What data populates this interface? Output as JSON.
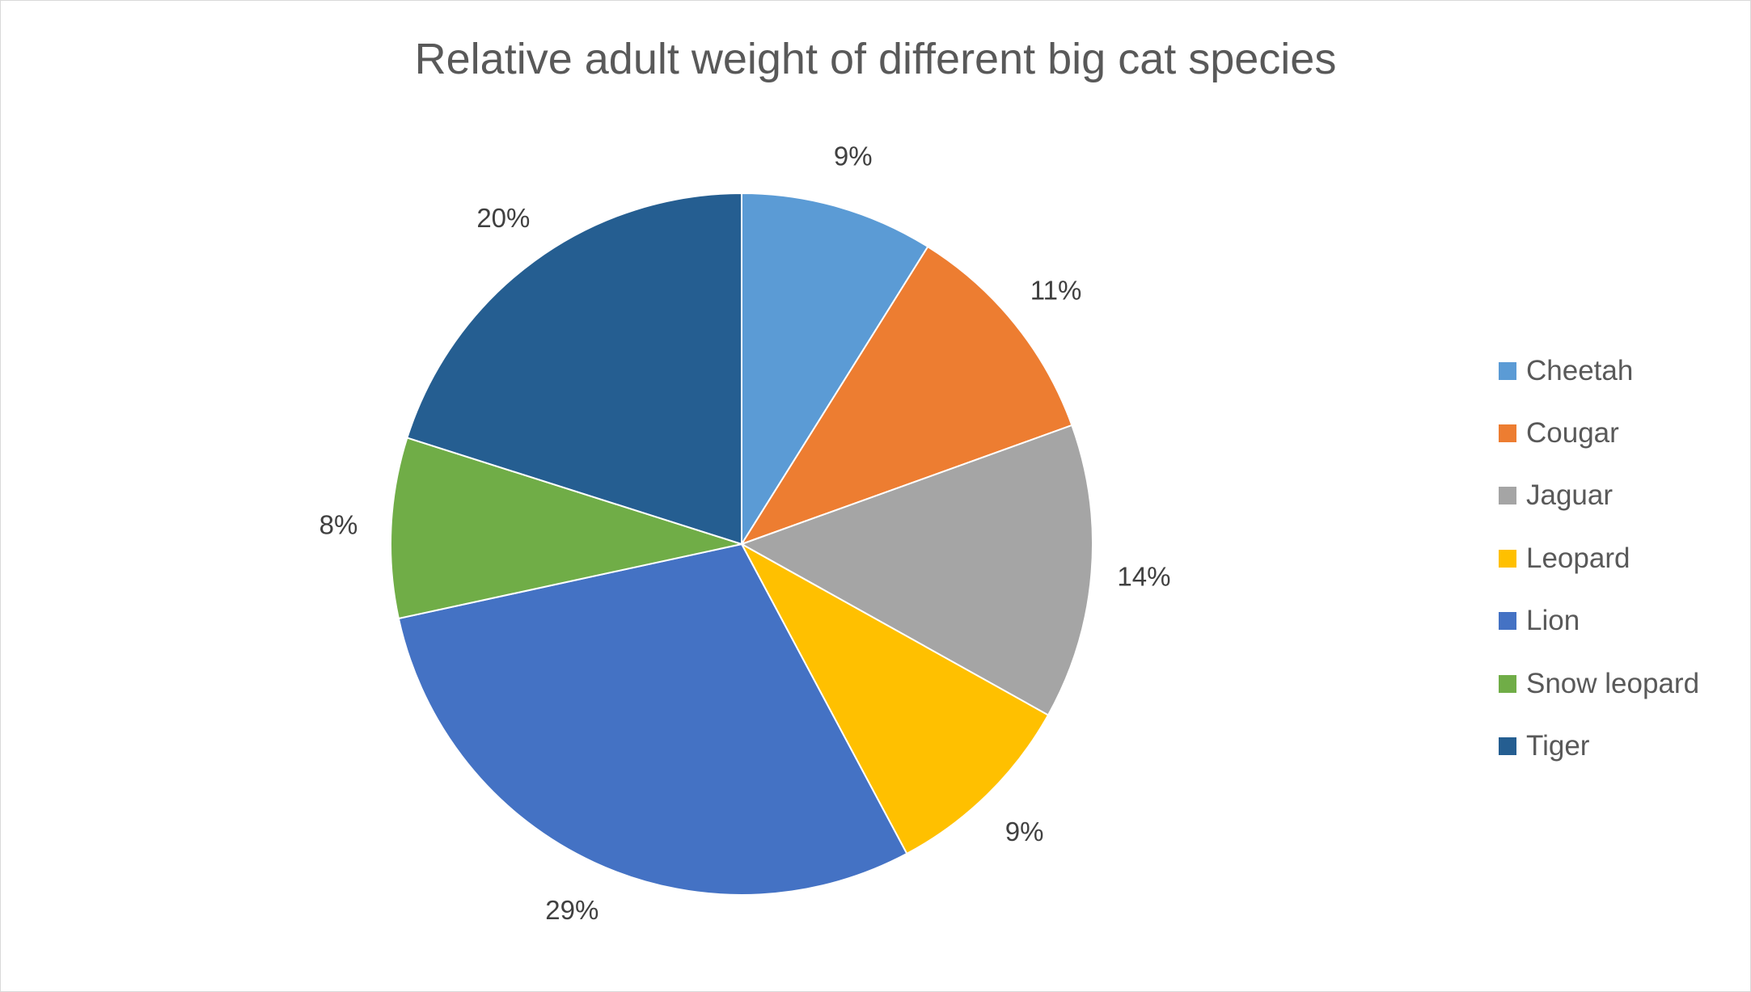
{
  "chart_data": {
    "type": "pie",
    "title": "Relative adult weight of different big cat species",
    "categories": [
      "Cheetah",
      "Cougar",
      "Jaguar",
      "Leopard",
      "Lion",
      "Snow leopard",
      "Tiger"
    ],
    "values": [
      8.9,
      10.6,
      13.6,
      9.1,
      29.4,
      8.3,
      20.1
    ],
    "data_labels": [
      "9%",
      "11%",
      "14%",
      "9%",
      "29%",
      "8%",
      "20%"
    ],
    "colors": [
      "#5B9BD5",
      "#ED7D31",
      "#A5A5A5",
      "#FFC000",
      "#4472C4",
      "#70AD47",
      "#255E91"
    ],
    "start_angle": "12 o'clock, clockwise",
    "legend_position": "right"
  }
}
